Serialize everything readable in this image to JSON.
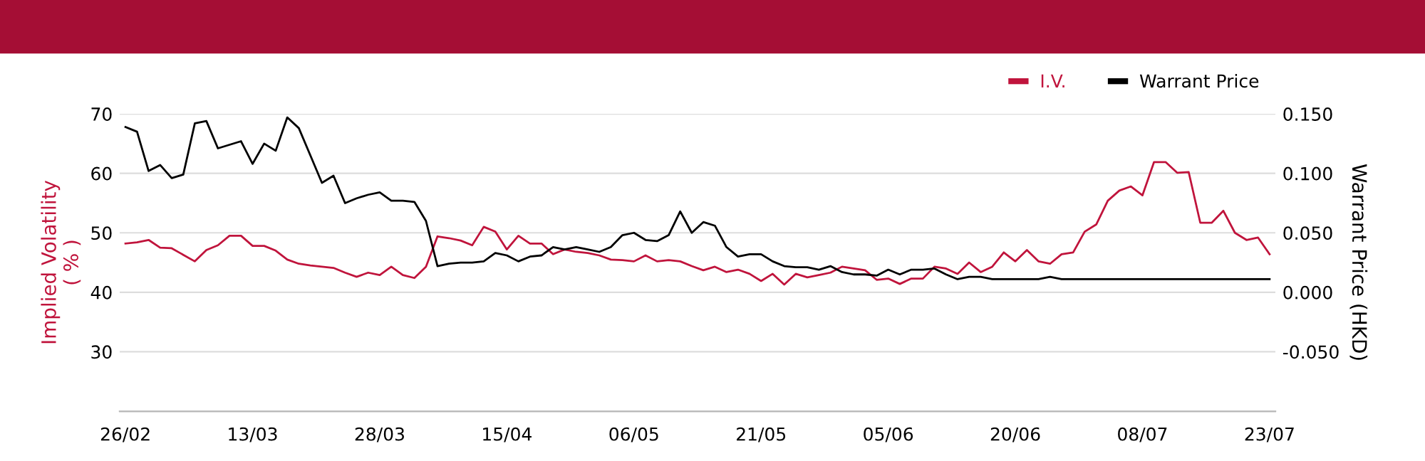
{
  "chart_data": {
    "type": "line",
    "ylabel": "Implied Volatility\n( % )",
    "y2label": "Warrant Price (HKD)",
    "categories": [
      "26/02",
      null,
      null,
      null,
      null,
      null,
      null,
      null,
      null,
      null,
      null,
      "13/03",
      null,
      null,
      null,
      null,
      null,
      null,
      null,
      null,
      null,
      null,
      "28/03",
      null,
      null,
      null,
      null,
      null,
      null,
      null,
      null,
      null,
      null,
      "15/04",
      null,
      null,
      null,
      null,
      null,
      null,
      null,
      null,
      null,
      null,
      "06/05",
      null,
      null,
      null,
      null,
      null,
      null,
      null,
      null,
      null,
      null,
      "21/05",
      null,
      null,
      null,
      null,
      null,
      null,
      null,
      null,
      null,
      null,
      "05/06",
      null,
      null,
      null,
      null,
      null,
      null,
      null,
      null,
      null,
      null,
      "20/06",
      null,
      null,
      null,
      null,
      null,
      null,
      null,
      null,
      null,
      null,
      "08/07",
      null,
      null,
      null,
      null,
      null,
      null,
      null,
      null,
      null,
      null,
      "23/07"
    ],
    "series": [
      {
        "name": "I.V.",
        "color": "#c0143c",
        "values": [
          48.2,
          48.4,
          48.8,
          47.5,
          47.4,
          46.3,
          45.2,
          47.1,
          47.9,
          49.5,
          49.5,
          47.8,
          47.8,
          47.0,
          45.5,
          44.8,
          44.5,
          44.3,
          44.1,
          43.3,
          42.6,
          43.3,
          42.9,
          44.3,
          42.9,
          42.4,
          44.3,
          49.4,
          49.1,
          48.7,
          47.9,
          51.0,
          50.2,
          47.2,
          49.5,
          48.2,
          48.2,
          46.4,
          47.2,
          46.8,
          46.6,
          46.2,
          45.5,
          45.4,
          45.2,
          46.2,
          45.2,
          45.4,
          45.2,
          44.4,
          43.7,
          44.3,
          43.4,
          43.8,
          43.1,
          41.9,
          43.1,
          41.3,
          43.1,
          42.5,
          42.9,
          43.3,
          44.3,
          44.0,
          43.7,
          42.1,
          42.3,
          41.4,
          42.3,
          42.3,
          44.3,
          44.0,
          43.1,
          45.0,
          43.4,
          44.3,
          46.7,
          45.2,
          47.1,
          45.2,
          44.8,
          46.4,
          46.7,
          50.2,
          51.4,
          55.4,
          57.1,
          57.8,
          56.3,
          61.9,
          61.9,
          60.1,
          60.2,
          51.7,
          51.7,
          53.7,
          50.0,
          48.8,
          49.2,
          46.4
        ]
      },
      {
        "name": "Warrant Price",
        "color": "#000000",
        "axis": "y2",
        "values": [
          0.139,
          0.135,
          0.102,
          0.107,
          0.096,
          0.099,
          0.142,
          0.144,
          0.121,
          0.124,
          0.127,
          0.108,
          0.125,
          0.119,
          0.147,
          0.138,
          0.115,
          0.092,
          0.098,
          0.075,
          0.079,
          0.082,
          0.084,
          0.077,
          0.077,
          0.076,
          0.06,
          0.022,
          0.024,
          0.025,
          0.025,
          0.026,
          0.033,
          0.031,
          0.026,
          0.03,
          0.031,
          0.038,
          0.036,
          0.038,
          0.036,
          0.034,
          0.038,
          0.048,
          0.05,
          0.044,
          0.043,
          0.048,
          0.068,
          0.05,
          0.059,
          0.056,
          0.038,
          0.03,
          0.032,
          0.032,
          0.026,
          0.022,
          0.021,
          0.021,
          0.019,
          0.022,
          0.017,
          0.015,
          0.015,
          0.014,
          0.019,
          0.015,
          0.019,
          0.019,
          0.02,
          0.015,
          0.011,
          0.013,
          0.013,
          0.011,
          0.011,
          0.011,
          0.011,
          0.011,
          0.013,
          0.011,
          0.011,
          0.011,
          0.011,
          0.011,
          0.011,
          0.011,
          0.011,
          0.011,
          0.011,
          0.011,
          0.011,
          0.011,
          0.011,
          0.011,
          0.011,
          0.011,
          0.011,
          0.011
        ]
      }
    ],
    "ylim": [
      20,
      70
    ],
    "yticks": [
      30,
      40,
      50,
      60,
      70
    ],
    "y2lim": [
      -0.1,
      0.15
    ],
    "y2ticks": [
      {
        "value": -0.05,
        "label": "-0.050"
      },
      {
        "value": 0,
        "label": "0.000"
      },
      {
        "value": 0.05,
        "label": "0.050"
      },
      {
        "value": 0.1,
        "label": "0.100"
      },
      {
        "value": 0.15,
        "label": "0.150"
      }
    ],
    "grid": "y",
    "legend": "top right",
    "marker": "none",
    "line_style": "solid"
  }
}
